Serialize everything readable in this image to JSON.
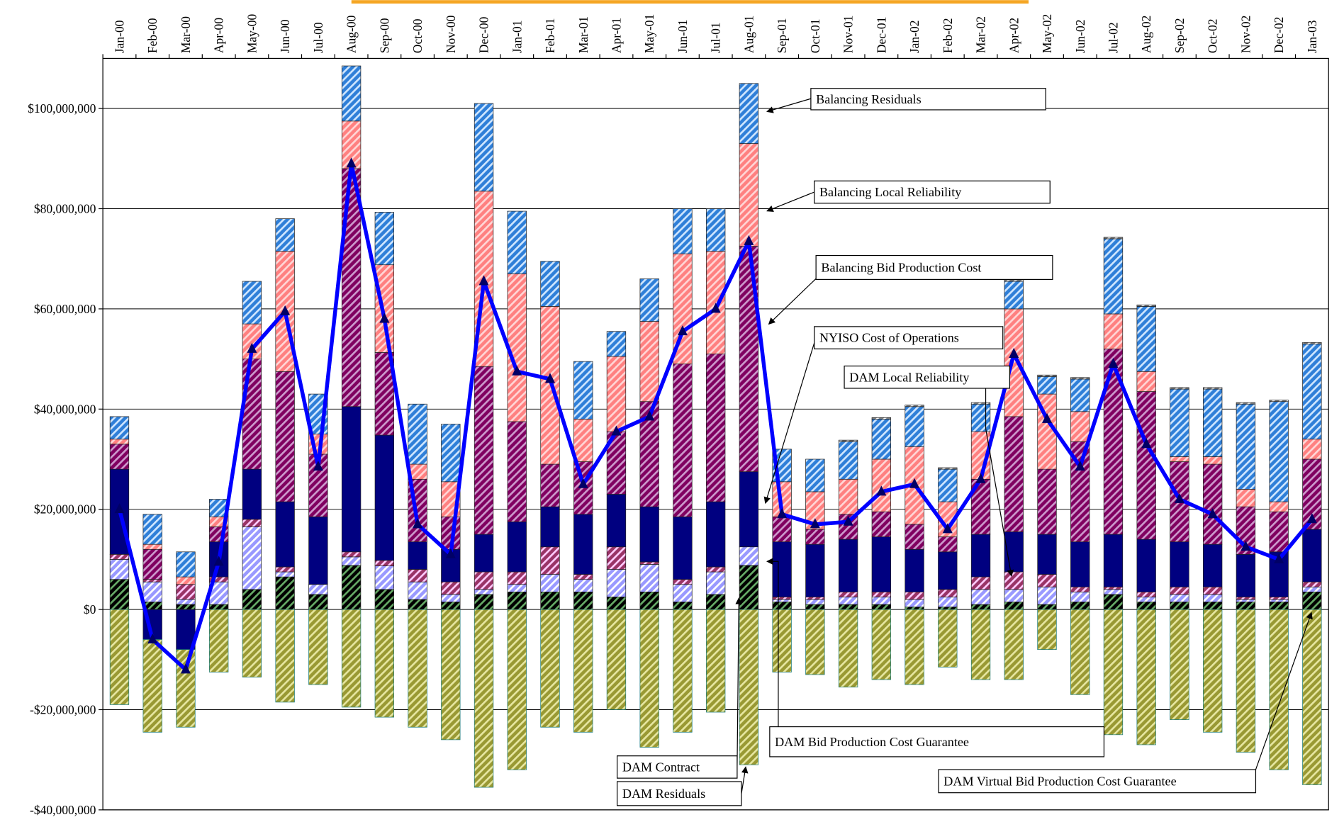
{
  "chart_data": {
    "type": "stacked_bar_line",
    "categories": [
      "Jan-00",
      "Feb-00",
      "Mar-00",
      "Apr-00",
      "May-00",
      "Jun-00",
      "Jul-00",
      "Aug-00",
      "Sep-00",
      "Oct-00",
      "Nov-00",
      "Dec-00",
      "Jan-01",
      "Feb-01",
      "Mar-01",
      "Apr-01",
      "May-01",
      "Jun-01",
      "Jul-01",
      "Aug-01",
      "Sep-01",
      "Oct-01",
      "Nov-01",
      "Dec-01",
      "Jan-02",
      "Feb-02",
      "Mar-02",
      "Apr-02",
      "May-02",
      "Jun-02",
      "Jul-02",
      "Aug-02",
      "Sep-02",
      "Oct-02",
      "Nov-02",
      "Dec-02",
      "Jan-03"
    ],
    "ylim": [
      -40000000,
      110000000
    ],
    "yticks": [
      {
        "value": -40000000,
        "label": "-$40,000,000"
      },
      {
        "value": -20000000,
        "label": "-$20,000,000"
      },
      {
        "value": 0,
        "label": "$0"
      },
      {
        "value": 20000000,
        "label": "$20,000,000"
      },
      {
        "value": 40000000,
        "label": "$40,000,000"
      },
      {
        "value": 60000000,
        "label": "$60,000,000"
      },
      {
        "value": 80000000,
        "label": "$80,000,000"
      },
      {
        "value": 100000000,
        "label": "$100,000,000"
      }
    ],
    "grid": true,
    "series": [
      {
        "name": "DAM Contract",
        "color": "#000000",
        "stripe": "#66aa66",
        "hatch": true,
        "values": [
          6000000,
          1500000,
          1000000,
          1000000,
          4000000,
          6500000,
          3000000,
          8800000,
          4000000,
          2000000,
          1500000,
          3000000,
          3500000,
          3500000,
          3500000,
          2500000,
          3500000,
          1500000,
          3000000,
          8800000,
          1500000,
          1000000,
          1000000,
          1000000,
          500000,
          500000,
          1000000,
          1500000,
          1000000,
          1500000,
          3000000,
          1500000,
          1500000,
          1500000,
          1500000,
          1500000,
          3500000
        ]
      },
      {
        "name": "DAM Bid Production Cost Guarantee",
        "color": "#9999ff",
        "stripe": "#ffffff",
        "hatch": true,
        "values": [
          4000000,
          4000000,
          1000000,
          4500000,
          12500000,
          1000000,
          2000000,
          1700000,
          4700000,
          3500000,
          1500000,
          1000000,
          1500000,
          3500000,
          2500000,
          5500000,
          5500000,
          3500000,
          4500000,
          3700000,
          500000,
          1000000,
          1500000,
          1500000,
          1500000,
          2000000,
          3000000,
          2500000,
          3500000,
          2000000,
          1000000,
          1000000,
          1500000,
          1500000,
          500000,
          500000,
          1000000
        ]
      },
      {
        "name": "DAM Local Reliability",
        "color": "#993366",
        "stripe": "#ffccff",
        "hatch": true,
        "values": [
          1000000,
          500000,
          3000000,
          1000000,
          1500000,
          1000000,
          0,
          1000000,
          1100000,
          2500000,
          2500000,
          3500000,
          2500000,
          5500000,
          1000000,
          4500000,
          500000,
          1000000,
          1000000,
          0,
          500000,
          500000,
          1000000,
          1000000,
          1500000,
          1500000,
          2500000,
          3500000,
          2500000,
          1000000,
          500000,
          1000000,
          1500000,
          1500000,
          500000,
          500000,
          1000000
        ]
      },
      {
        "name": "NYISO Cost of Operations",
        "color": "#000080",
        "stripe": "#000080",
        "hatch": false,
        "values": [
          17000000,
          -6000000,
          -8000000,
          7000000,
          10000000,
          13000000,
          13500000,
          29000000,
          25000000,
          5500000,
          6500000,
          7500000,
          10000000,
          8000000,
          12000000,
          10500000,
          11000000,
          12500000,
          13000000,
          15000000,
          11000000,
          10500000,
          10500000,
          11000000,
          8500000,
          7500000,
          8500000,
          8000000,
          8000000,
          9000000,
          10500000,
          10500000,
          9000000,
          8500000,
          8500000,
          9000000,
          10500000
        ]
      },
      {
        "name": "Balancing Bid Production Cost",
        "color": "#800060",
        "stripe": "#cc99cc",
        "hatch": true,
        "values": [
          5000000,
          6000000,
          0,
          3000000,
          22000000,
          26000000,
          12500000,
          47500000,
          16500000,
          12500000,
          6500000,
          33500000,
          20000000,
          8500000,
          10500000,
          12500000,
          21000000,
          30500000,
          29500000,
          45000000,
          5000000,
          3000000,
          5000000,
          5000000,
          5000000,
          3000000,
          11000000,
          23000000,
          13000000,
          20000000,
          37000000,
          29500000,
          16000000,
          16000000,
          9500000,
          8000000,
          14000000
        ]
      },
      {
        "name": "Balancing Local Reliability",
        "color": "#ff8080",
        "stripe": "#ffd6d6",
        "hatch": true,
        "values": [
          1000000,
          1000000,
          1500000,
          2000000,
          7000000,
          24000000,
          4000000,
          9500000,
          17500000,
          3000000,
          7000000,
          35000000,
          29500000,
          31500000,
          8500000,
          15000000,
          16000000,
          22000000,
          20500000,
          20500000,
          7000000,
          7500000,
          7000000,
          10500000,
          15500000,
          7000000,
          9500000,
          21500000,
          15000000,
          6000000,
          7000000,
          4000000,
          1000000,
          1500000,
          3500000,
          2000000,
          4000000
        ]
      },
      {
        "name": "Balancing Residuals",
        "color": "#2f7fd8",
        "stripe": "#cfe6ff",
        "hatch": true,
        "values": [
          4500000,
          6000000,
          5000000,
          3500000,
          8500000,
          6500000,
          8000000,
          11000000,
          10500000,
          12000000,
          11500000,
          17500000,
          12500000,
          9000000,
          11500000,
          5000000,
          8500000,
          9000000,
          8500000,
          12000000,
          6500000,
          6500000,
          7500000,
          8000000,
          8000000,
          6500000,
          5500000,
          5500000,
          3500000,
          6500000,
          15000000,
          13000000,
          13500000,
          13500000,
          17000000,
          20000000,
          19000000
        ]
      },
      {
        "name": "DAM Virtual Bid Production Cost Guarantee",
        "color": "#808080",
        "stripe": "#ffffff",
        "hatch": true,
        "values": [
          0,
          0,
          0,
          0,
          0,
          0,
          0,
          0,
          0,
          0,
          0,
          0,
          0,
          0,
          0,
          0,
          0,
          0,
          0,
          0,
          0,
          0,
          300000,
          300000,
          300000,
          300000,
          300000,
          300000,
          300000,
          300000,
          300000,
          300000,
          300000,
          300000,
          300000,
          300000,
          300000
        ]
      },
      {
        "name": "DAM Residuals",
        "color": "#999933",
        "stripe": "#e6e6a0",
        "hatch": true,
        "values": [
          -19000000,
          -18500000,
          -15500000,
          -12500000,
          -13500000,
          -18500000,
          -15000000,
          -19500000,
          -21500000,
          -23500000,
          -26000000,
          -35500000,
          -32000000,
          -23500000,
          -24500000,
          -20000000,
          -27500000,
          -24500000,
          -20500000,
          -31000000,
          -12500000,
          -13000000,
          -15500000,
          -14000000,
          -15000000,
          -11500000,
          -14000000,
          -14000000,
          -8000000,
          -17000000,
          -25000000,
          -27000000,
          -22000000,
          -24500000,
          -28500000,
          -32000000,
          -35000000
        ]
      },
      {
        "type": "line",
        "color": "#0000ff",
        "marker_color": "#000066",
        "values": [
          20000000,
          -6000000,
          -12000000,
          9500000,
          52000000,
          59500000,
          28500000,
          89000000,
          58000000,
          17000000,
          11000000,
          65500000,
          47500000,
          46000000,
          25000000,
          35500000,
          38500000,
          55500000,
          60000000,
          73500000,
          19000000,
          17000000,
          17500000,
          23500000,
          25000000,
          16000000,
          26000000,
          51000000,
          38000000,
          28500000,
          49000000,
          33000000,
          22000000,
          19000000,
          12500000,
          10000000,
          18000000
        ]
      }
    ]
  }
}
